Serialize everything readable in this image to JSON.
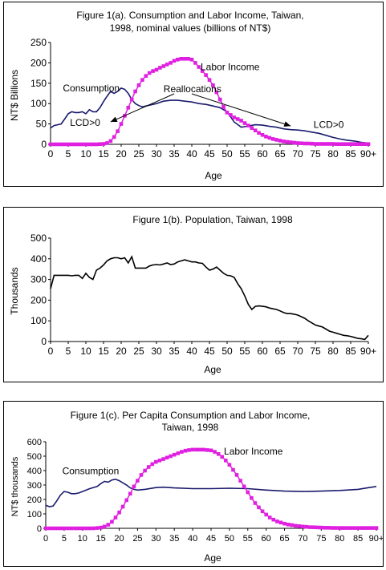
{
  "colors": {
    "consumption": "#1a1a6e",
    "labor_income": "#e020e0",
    "population": "#000000",
    "axis": "#000000"
  },
  "chart_data": [
    {
      "type": "line",
      "title": "Figure 1(a). Consumption and Labor Income, Taiwan,",
      "subtitle": "1998, nominal values (billions of NT$)",
      "xlabel": "Age",
      "ylabel": "NT$ Billions",
      "ylim": [
        0,
        250
      ],
      "xlim": [
        0,
        90
      ],
      "xticks": [
        0,
        5,
        10,
        15,
        20,
        25,
        30,
        35,
        40,
        45,
        50,
        55,
        60,
        65,
        70,
        75,
        80,
        85,
        90
      ],
      "xtick_labels": [
        "0",
        "5",
        "10",
        "15",
        "20",
        "25",
        "30",
        "35",
        "40",
        "45",
        "50",
        "55",
        "60",
        "65",
        "70",
        "75",
        "80",
        "85",
        "90+"
      ],
      "yticks": [
        0,
        50,
        100,
        150,
        200,
        250
      ],
      "grid": false,
      "series": [
        {
          "name": "Consumption",
          "color_key": "consumption",
          "marker": "none",
          "x": [
            0,
            1,
            2,
            3,
            4,
            5,
            6,
            7,
            8,
            9,
            10,
            11,
            12,
            13,
            14,
            15,
            16,
            17,
            18,
            19,
            20,
            21,
            22,
            23,
            24,
            25,
            26,
            28,
            30,
            32,
            34,
            36,
            38,
            40,
            42,
            44,
            46,
            48,
            50,
            52,
            54,
            56,
            58,
            60,
            62,
            64,
            66,
            68,
            70,
            72,
            74,
            76,
            78,
            80,
            82,
            84,
            86,
            88,
            90
          ],
          "values": [
            40,
            46,
            48,
            50,
            62,
            75,
            80,
            78,
            78,
            80,
            75,
            85,
            80,
            80,
            90,
            105,
            118,
            130,
            125,
            130,
            138,
            135,
            125,
            110,
            100,
            95,
            92,
            96,
            100,
            106,
            108,
            108,
            106,
            104,
            100,
            98,
            94,
            90,
            80,
            55,
            42,
            45,
            48,
            47,
            44,
            42,
            38,
            36,
            35,
            33,
            30,
            27,
            22,
            17,
            13,
            10,
            8,
            5,
            3
          ]
        },
        {
          "name": "Labor Income",
          "color_key": "labor_income",
          "marker": "square",
          "x": [
            0,
            1,
            2,
            3,
            4,
            5,
            6,
            7,
            8,
            9,
            10,
            11,
            12,
            13,
            14,
            15,
            16,
            17,
            18,
            19,
            20,
            21,
            22,
            23,
            24,
            25,
            26,
            27,
            28,
            29,
            30,
            31,
            32,
            33,
            34,
            35,
            36,
            37,
            38,
            39,
            40,
            41,
            42,
            43,
            44,
            45,
            46,
            47,
            48,
            49,
            50,
            51,
            52,
            53,
            54,
            55,
            56,
            57,
            58,
            59,
            60,
            61,
            62,
            63,
            64,
            65,
            66,
            67,
            68,
            69,
            70,
            71,
            72,
            73,
            74,
            75,
            76,
            77,
            78,
            79,
            80,
            81,
            82,
            83,
            84,
            85,
            86,
            87,
            88,
            89,
            90
          ],
          "values": [
            0,
            0,
            0,
            0,
            0,
            0,
            0,
            0,
            0,
            0,
            0,
            0,
            0,
            0,
            0.5,
            1,
            3,
            8,
            18,
            32,
            50,
            70,
            90,
            110,
            130,
            145,
            158,
            168,
            175,
            180,
            183,
            188,
            192,
            196,
            200,
            205,
            208,
            210,
            210,
            210,
            208,
            200,
            190,
            180,
            170,
            158,
            145,
            128,
            110,
            92,
            78,
            72,
            66,
            62,
            58,
            52,
            46,
            40,
            34,
            28,
            23,
            19,
            16,
            13,
            11,
            9,
            7,
            6,
            5,
            4,
            3,
            2.5,
            2,
            2,
            1.5,
            1,
            1,
            1,
            1,
            1,
            1,
            0.5,
            0.5,
            0.5,
            0.5,
            0.5,
            0.5,
            0.5,
            0.5,
            0.5,
            0.5
          ]
        }
      ],
      "annotations": [
        {
          "text": "Consumption",
          "x": 3.5,
          "y": 130
        },
        {
          "text": "Labor Income",
          "x": 42.5,
          "y": 182
        },
        {
          "text": "Reallocations",
          "x": 32,
          "y": 128
        },
        {
          "text": "LCD>0",
          "x": 5.5,
          "y": 45
        },
        {
          "text": "LCD>0",
          "x": 74.5,
          "y": 40
        }
      ],
      "arrows": [
        {
          "from": [
            35,
            124
          ],
          "to": [
            17,
            55
          ]
        },
        {
          "from": [
            40,
            124
          ],
          "to": [
            68,
            45
          ]
        }
      ]
    },
    {
      "type": "line",
      "title": "Figure 1(b). Population, Taiwan, 1998",
      "xlabel": "Age",
      "ylabel": "Thousands",
      "ylim": [
        0,
        500
      ],
      "xlim": [
        0,
        90
      ],
      "xticks": [
        0,
        5,
        10,
        15,
        20,
        25,
        30,
        35,
        40,
        45,
        50,
        55,
        60,
        65,
        70,
        75,
        80,
        85,
        90
      ],
      "xtick_labels": [
        "0",
        "5",
        "10",
        "15",
        "20",
        "25",
        "30",
        "35",
        "40",
        "45",
        "50",
        "55",
        "60",
        "65",
        "70",
        "75",
        "80",
        "85",
        "90+"
      ],
      "yticks": [
        0,
        100,
        200,
        300,
        400,
        500
      ],
      "grid": false,
      "series": [
        {
          "name": "",
          "color_key": "population",
          "marker": "none",
          "x": [
            0,
            1,
            2,
            3,
            4,
            5,
            6,
            7,
            8,
            9,
            10,
            11,
            12,
            13,
            14,
            15,
            16,
            17,
            18,
            19,
            20,
            21,
            22,
            23,
            24,
            25,
            26,
            27,
            28,
            29,
            30,
            31,
            32,
            33,
            34,
            35,
            36,
            37,
            38,
            39,
            40,
            41,
            42,
            43,
            44,
            45,
            46,
            47,
            48,
            49,
            50,
            51,
            52,
            53,
            54,
            55,
            56,
            57,
            58,
            59,
            60,
            61,
            62,
            63,
            64,
            65,
            66,
            67,
            68,
            69,
            70,
            71,
            72,
            73,
            74,
            75,
            76,
            77,
            78,
            79,
            80,
            81,
            82,
            83,
            84,
            85,
            86,
            87,
            88,
            89,
            90
          ],
          "values": [
            255,
            320,
            320,
            320,
            320,
            320,
            318,
            320,
            320,
            305,
            330,
            310,
            300,
            345,
            355,
            370,
            390,
            400,
            405,
            405,
            400,
            405,
            380,
            410,
            355,
            355,
            355,
            355,
            365,
            370,
            372,
            370,
            375,
            380,
            372,
            375,
            385,
            390,
            395,
            390,
            385,
            385,
            380,
            378,
            360,
            345,
            350,
            360,
            345,
            330,
            320,
            318,
            310,
            280,
            255,
            220,
            180,
            155,
            170,
            172,
            170,
            168,
            162,
            158,
            155,
            148,
            140,
            135,
            135,
            132,
            128,
            120,
            112,
            100,
            90,
            80,
            75,
            70,
            60,
            50,
            45,
            40,
            35,
            30,
            28,
            25,
            20,
            15,
            13,
            10,
            30
          ]
        }
      ]
    },
    {
      "type": "line",
      "title": "Figure 1(c). Per Capita Consumption and Labor Income,",
      "subtitle": "Taiwan, 1998",
      "xlabel": "Age",
      "ylabel": "NT$ thousands",
      "ylim": [
        0,
        600
      ],
      "xlim": [
        0,
        90
      ],
      "xticks": [
        0,
        5,
        10,
        15,
        20,
        25,
        30,
        35,
        40,
        45,
        50,
        55,
        60,
        65,
        70,
        75,
        80,
        85,
        90
      ],
      "xtick_labels": [
        "0",
        "5",
        "10",
        "15",
        "20",
        "25",
        "30",
        "35",
        "40",
        "45",
        "50",
        "55",
        "60",
        "65",
        "70",
        "75",
        "80",
        "85",
        "90+"
      ],
      "yticks": [
        0,
        100,
        200,
        300,
        400,
        500,
        600
      ],
      "grid": false,
      "series": [
        {
          "name": "Consumption",
          "color_key": "consumption",
          "marker": "none",
          "x": [
            0,
            1,
            2,
            3,
            4,
            5,
            6,
            7,
            8,
            9,
            10,
            12,
            14,
            15,
            16,
            17,
            18,
            19,
            20,
            21,
            22,
            23,
            24,
            25,
            27,
            30,
            32,
            35,
            40,
            45,
            50,
            55,
            60,
            65,
            70,
            75,
            80,
            85,
            88,
            90
          ],
          "values": [
            160,
            150,
            155,
            190,
            230,
            255,
            250,
            240,
            240,
            245,
            255,
            275,
            290,
            310,
            325,
            320,
            335,
            340,
            330,
            315,
            300,
            280,
            270,
            265,
            270,
            282,
            285,
            280,
            275,
            275,
            278,
            275,
            265,
            258,
            255,
            258,
            262,
            270,
            282,
            290
          ]
        },
        {
          "name": "Labor Income",
          "color_key": "labor_income",
          "marker": "square",
          "x": [
            0,
            1,
            2,
            3,
            4,
            5,
            6,
            7,
            8,
            9,
            10,
            11,
            12,
            13,
            14,
            15,
            16,
            17,
            18,
            19,
            20,
            21,
            22,
            23,
            24,
            25,
            26,
            27,
            28,
            29,
            30,
            31,
            32,
            33,
            34,
            35,
            36,
            37,
            38,
            39,
            40,
            41,
            42,
            43,
            44,
            45,
            46,
            47,
            48,
            49,
            50,
            51,
            52,
            53,
            54,
            55,
            56,
            57,
            58,
            59,
            60,
            61,
            62,
            63,
            64,
            65,
            66,
            67,
            68,
            69,
            70,
            71,
            72,
            73,
            74,
            75,
            76,
            77,
            78,
            79,
            80,
            81,
            82,
            83,
            84,
            85,
            86,
            87,
            88,
            89,
            90
          ],
          "values": [
            0,
            0,
            0,
            0,
            0,
            0,
            0,
            0,
            0,
            0,
            0,
            0,
            0,
            0,
            2,
            5,
            12,
            25,
            45,
            75,
            110,
            150,
            195,
            240,
            290,
            330,
            370,
            400,
            425,
            445,
            460,
            470,
            480,
            490,
            500,
            510,
            520,
            530,
            538,
            542,
            545,
            545,
            545,
            545,
            542,
            540,
            530,
            515,
            495,
            470,
            440,
            405,
            370,
            330,
            290,
            250,
            210,
            175,
            145,
            118,
            95,
            75,
            60,
            48,
            40,
            32,
            26,
            22,
            18,
            15,
            12,
            10,
            8,
            7,
            6,
            5,
            4,
            4,
            3,
            3,
            2,
            2,
            2,
            2,
            2,
            2,
            2,
            2,
            2,
            2,
            2
          ]
        }
      ],
      "annotations": [
        {
          "text": "Consumption",
          "x": 4.5,
          "y": 375
        },
        {
          "text": "Labor Income",
          "x": 48.5,
          "y": 510
        }
      ]
    }
  ]
}
